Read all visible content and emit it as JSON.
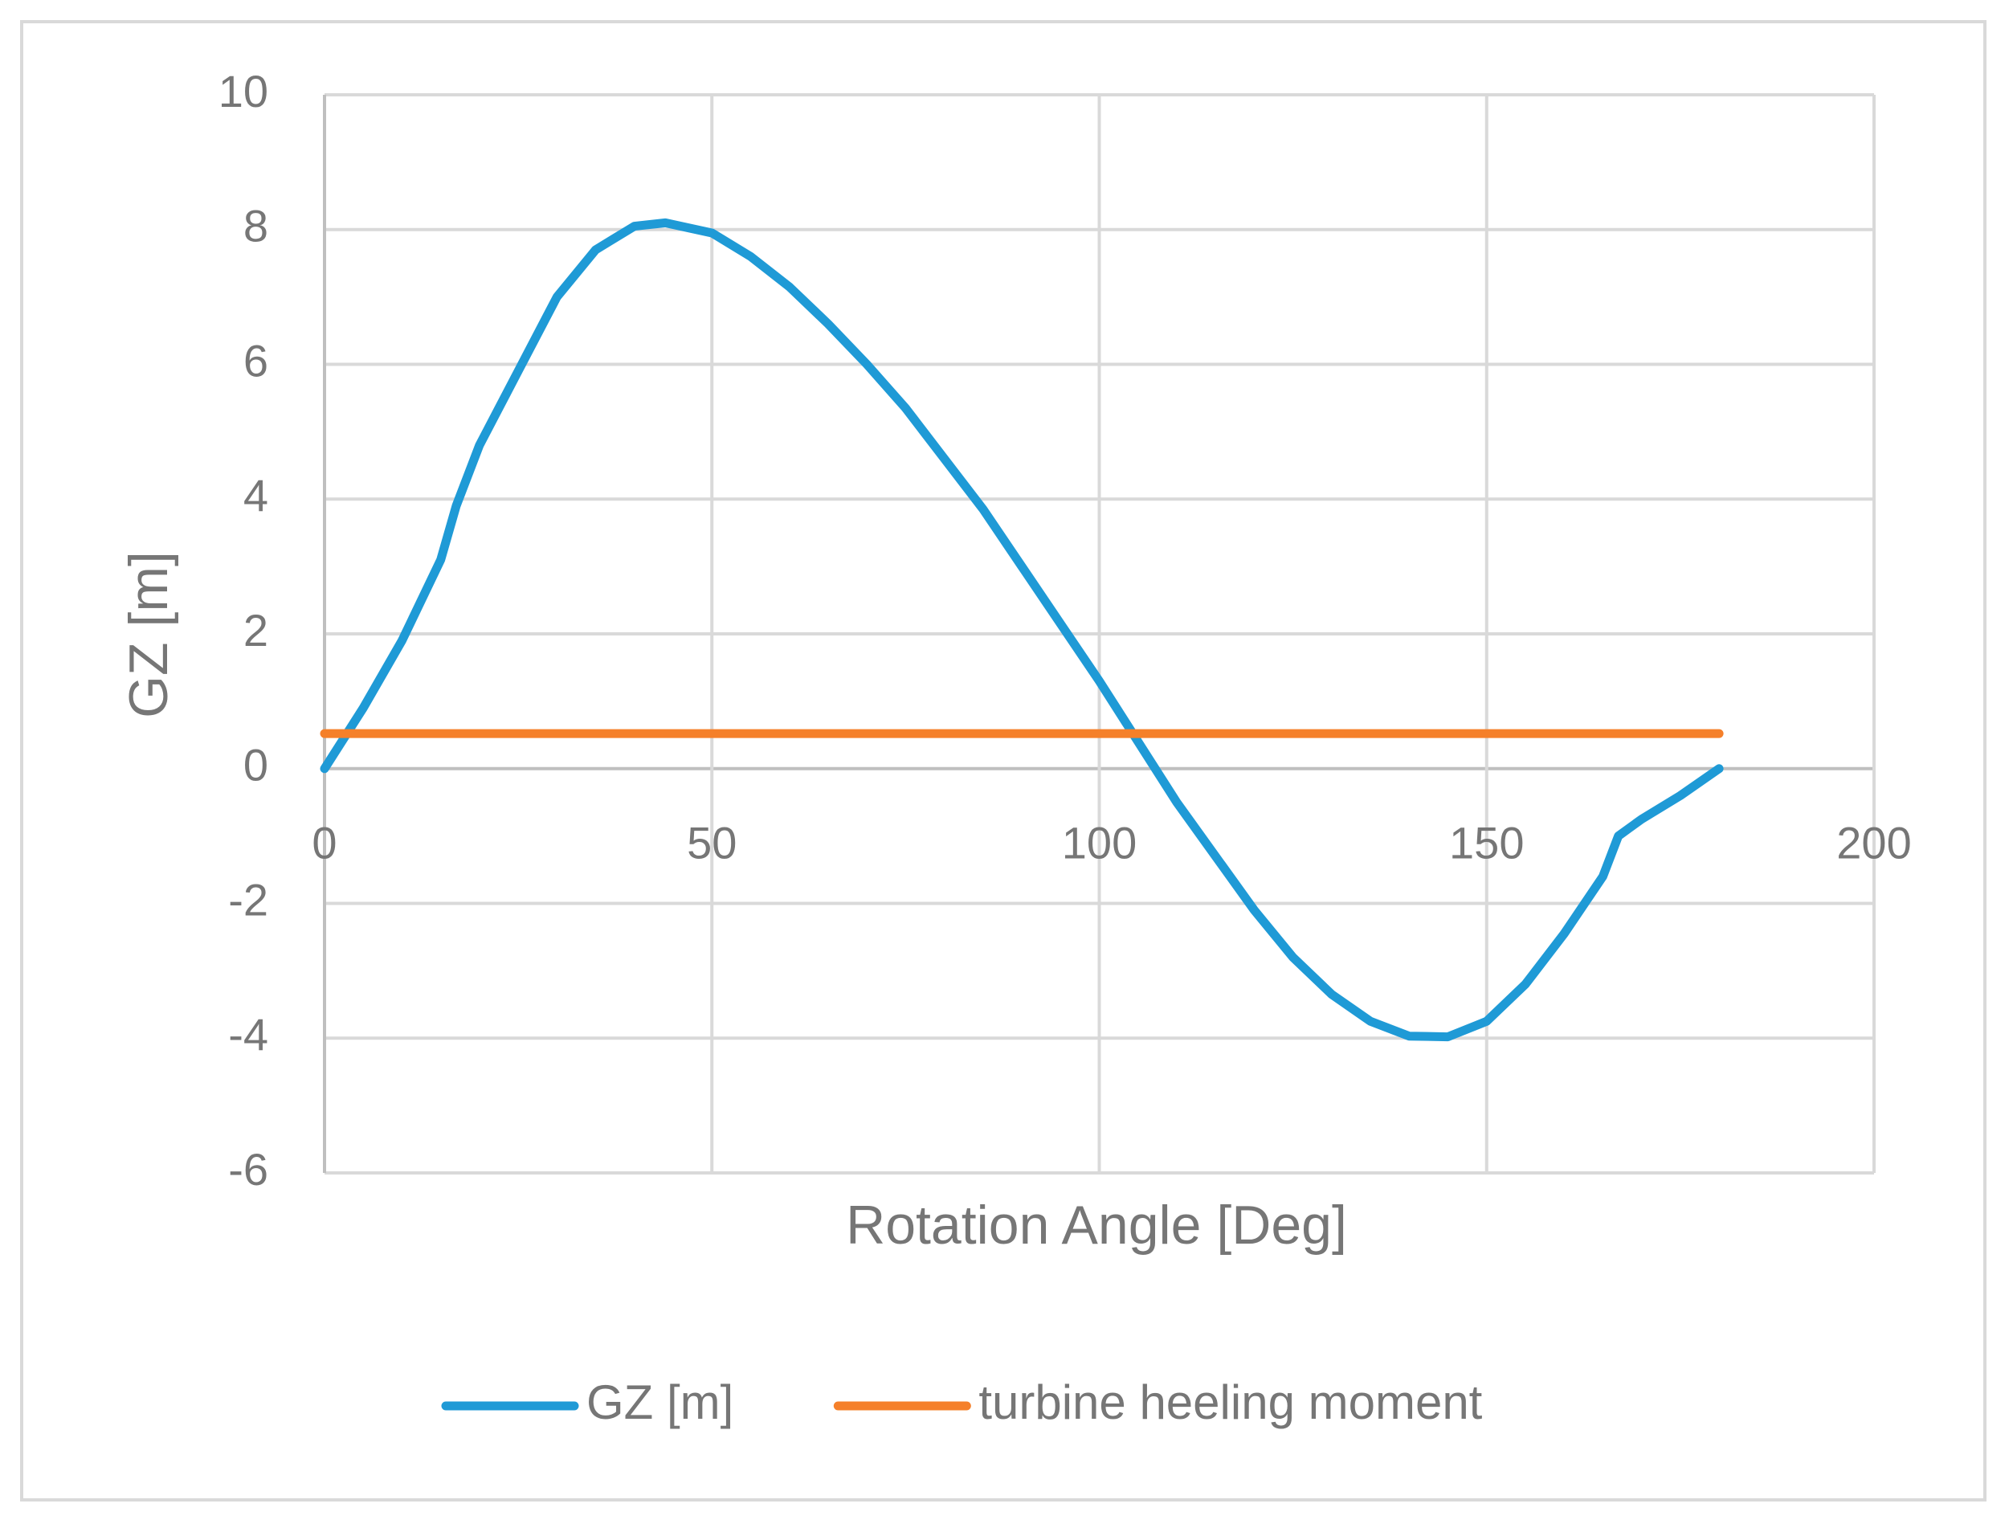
{
  "chart_data": {
    "type": "line",
    "x_label": "Rotation Angle [Deg]",
    "y_label": "GZ [m]",
    "xlim": [
      0,
      200
    ],
    "xticks": [
      0,
      50,
      100,
      150,
      200
    ],
    "ylim": [
      -6,
      10
    ],
    "yticks": [
      -6,
      -4,
      -2,
      0,
      2,
      4,
      6,
      8,
      10
    ],
    "grid": true,
    "legend": "bottom",
    "series": [
      {
        "name": "GZ [m]",
        "color": "#1f9ad6",
        "x": [
          0,
          5,
          10,
          15,
          17,
          20,
          25,
          30,
          35,
          40,
          44,
          50,
          55,
          60,
          65,
          70,
          75,
          80,
          85,
          90,
          95,
          100,
          105,
          110,
          115,
          120,
          125,
          130,
          135,
          140,
          145,
          150,
          155,
          160,
          165,
          167,
          170,
          175,
          180
        ],
        "values": [
          0,
          0.9,
          1.9,
          3.1,
          3.9,
          4.8,
          5.9,
          7.0,
          7.7,
          8.05,
          8.1,
          7.95,
          7.6,
          7.15,
          6.6,
          6.0,
          5.35,
          4.6,
          3.85,
          3.0,
          2.15,
          1.3,
          0.4,
          -0.5,
          -1.3,
          -2.1,
          -2.8,
          -3.35,
          -3.75,
          -3.97,
          -3.98,
          -3.75,
          -3.2,
          -2.45,
          -1.6,
          -1.0,
          -0.75,
          -0.4,
          0
        ]
      },
      {
        "name": "turbine heeling moment",
        "color": "#f5802a",
        "x": [
          0,
          180
        ],
        "values": [
          0.52,
          0.52
        ]
      }
    ]
  }
}
